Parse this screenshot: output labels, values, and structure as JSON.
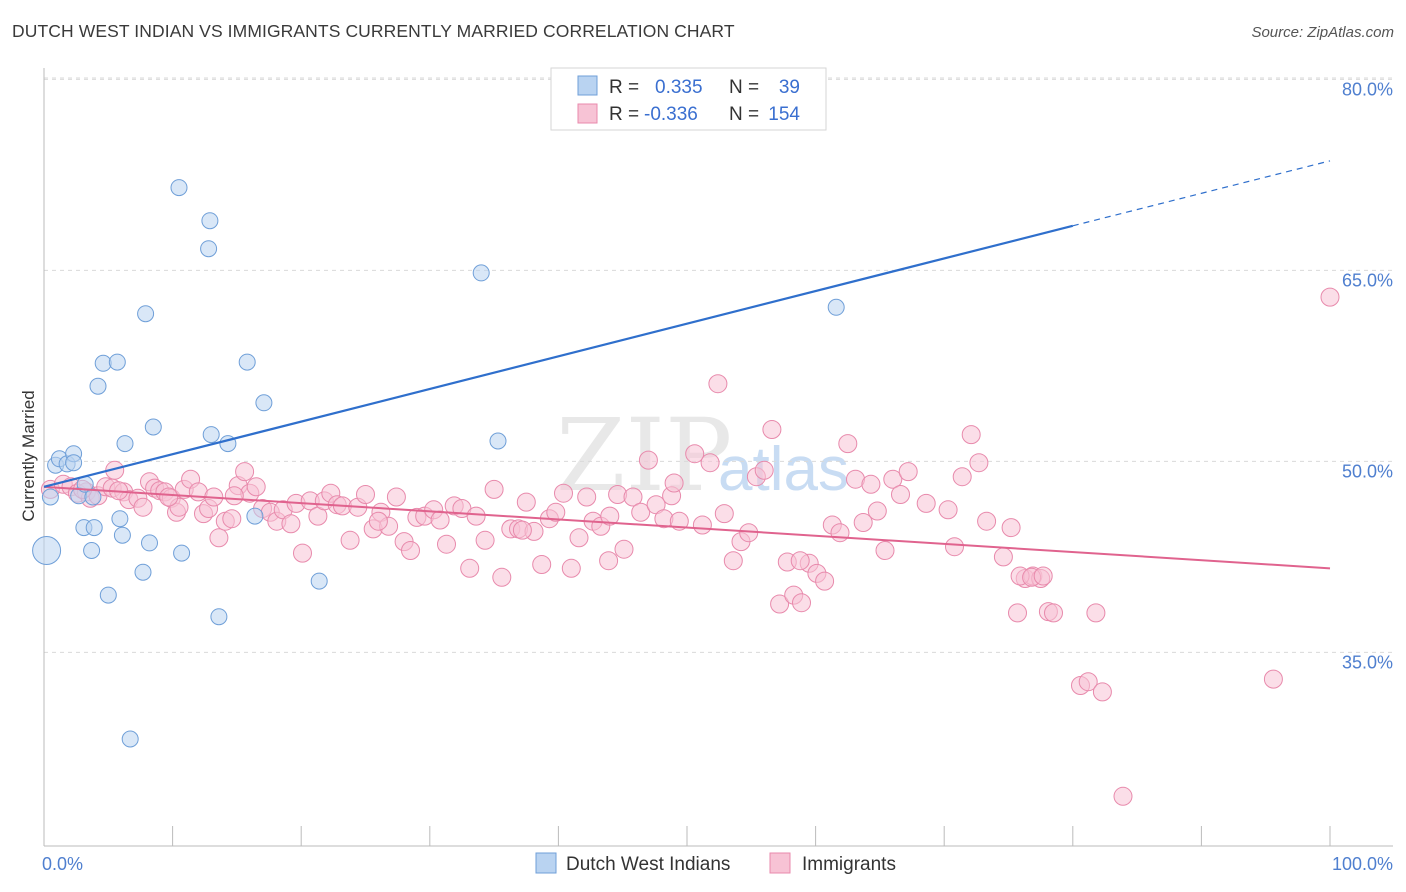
{
  "header": {
    "title": "DUTCH WEST INDIAN VS IMMIGRANTS CURRENTLY MARRIED CORRELATION CHART",
    "source": "Source: ZipAtlas.com"
  },
  "legend": {
    "rows": [
      {
        "r_label": "R =",
        "r_value": "0.335",
        "n_label": "N =",
        "n_value": "39"
      },
      {
        "r_label": "R =",
        "r_value": "-0.336",
        "n_label": "N =",
        "n_value": "154"
      }
    ]
  },
  "watermark": {
    "zip": "ZIP",
    "atlas": "atlas"
  },
  "colors": {
    "blue_fill": "#b9d3f1",
    "blue_stroke": "#6f9fd8",
    "blue_line": "#2f6fcc",
    "pink_fill": "#f7c3d5",
    "pink_stroke": "#e88aac",
    "pink_line": "#e0638e",
    "grid": "#d9d9d9",
    "axis_label": "#4f7fcf"
  },
  "chart_data": {
    "type": "scatter",
    "title": "DUTCH WEST INDIAN VS IMMIGRANTS CURRENTLY MARRIED CORRELATION CHART",
    "xlabel": "",
    "ylabel": "Currently Married",
    "xlim": [
      0,
      100
    ],
    "ylim": [
      20,
      82
    ],
    "x_tick_labels": [
      "0.0%",
      "100.0%"
    ],
    "y_ticks": [
      35,
      50,
      65,
      80
    ],
    "y_tick_labels": [
      "35.0%",
      "50.0%",
      "65.0%",
      "80.0%"
    ],
    "grid": true,
    "legend_position": "bottom",
    "series": [
      {
        "name": "Dutch West Indians",
        "R": 0.335,
        "N": 39,
        "trend": {
          "x0": 0,
          "y0": 48.0,
          "x1": 80,
          "y1": 68.5,
          "dashed_to_x": 100,
          "dashed_to_y": 73.6
        },
        "points": [
          [
            0.2,
            43.0,
            14
          ],
          [
            0.5,
            47.2,
            8
          ],
          [
            0.9,
            49.7,
            8
          ],
          [
            1.2,
            50.2,
            8
          ],
          [
            1.8,
            49.8,
            8
          ],
          [
            2.3,
            50.6,
            8
          ],
          [
            2.3,
            49.9,
            8
          ],
          [
            2.7,
            47.3,
            8
          ],
          [
            3.2,
            48.2,
            8
          ],
          [
            3.8,
            47.2,
            8
          ],
          [
            3.1,
            44.8,
            8
          ],
          [
            3.7,
            43.0,
            8
          ],
          [
            3.9,
            44.8,
            8
          ],
          [
            4.2,
            55.9,
            8
          ],
          [
            4.6,
            57.7,
            8
          ],
          [
            5.0,
            39.5,
            8
          ],
          [
            5.7,
            57.8,
            8
          ],
          [
            5.9,
            45.5,
            8
          ],
          [
            6.1,
            44.2,
            8
          ],
          [
            6.3,
            51.4,
            8
          ],
          [
            6.7,
            28.2,
            8
          ],
          [
            7.7,
            41.3,
            8
          ],
          [
            7.9,
            61.6,
            8
          ],
          [
            8.2,
            43.6,
            8
          ],
          [
            8.5,
            52.7,
            8
          ],
          [
            10.5,
            71.5,
            8
          ],
          [
            10.7,
            42.8,
            8
          ],
          [
            12.9,
            68.9,
            8
          ],
          [
            12.8,
            66.7,
            8
          ],
          [
            13.0,
            52.1,
            8
          ],
          [
            13.6,
            37.8,
            8
          ],
          [
            14.3,
            51.4,
            8
          ],
          [
            15.8,
            57.8,
            8
          ],
          [
            16.4,
            45.7,
            8
          ],
          [
            17.1,
            54.6,
            8
          ],
          [
            21.4,
            40.6,
            8
          ],
          [
            34.0,
            64.8,
            8
          ],
          [
            35.3,
            51.6,
            8
          ],
          [
            61.6,
            62.1,
            8
          ]
        ]
      },
      {
        "name": "Immigrants",
        "R": -0.336,
        "N": 154,
        "trend": {
          "x0": 0,
          "y0": 48.0,
          "x1": 100,
          "y1": 41.6
        },
        "points": [
          [
            0.5,
            47.8,
            9
          ],
          [
            1.5,
            48.2,
            9
          ],
          [
            2.1,
            48.0,
            9
          ],
          [
            2.6,
            47.5,
            9
          ],
          [
            3.3,
            47.6,
            9
          ],
          [
            3.6,
            47.1,
            9
          ],
          [
            4.2,
            47.3,
            9
          ],
          [
            4.8,
            48.0,
            9
          ],
          [
            5.3,
            47.9,
            9
          ],
          [
            5.5,
            49.3,
            9
          ],
          [
            6.2,
            47.6,
            9
          ],
          [
            6.6,
            47.0,
            9
          ],
          [
            7.3,
            47.1,
            9
          ],
          [
            7.7,
            46.4,
            9
          ],
          [
            8.2,
            48.4,
            9
          ],
          [
            8.6,
            47.9,
            9
          ],
          [
            9.0,
            47.7,
            9
          ],
          [
            9.4,
            47.6,
            9
          ],
          [
            9.9,
            47.1,
            9
          ],
          [
            10.3,
            46.0,
            9
          ],
          [
            10.5,
            46.4,
            9
          ],
          [
            10.9,
            47.8,
            9
          ],
          [
            11.4,
            48.6,
            9
          ],
          [
            12.0,
            47.6,
            9
          ],
          [
            12.4,
            45.9,
            9
          ],
          [
            12.8,
            46.3,
            9
          ],
          [
            13.2,
            47.2,
            9
          ],
          [
            13.6,
            44.0,
            9
          ],
          [
            14.1,
            45.3,
            9
          ],
          [
            14.6,
            45.5,
            9
          ],
          [
            15.1,
            48.1,
            9
          ],
          [
            15.6,
            49.2,
            9
          ],
          [
            16.0,
            47.5,
            9
          ],
          [
            16.5,
            48.0,
            9
          ],
          [
            17.0,
            46.3,
            9
          ],
          [
            17.6,
            46.0,
            9
          ],
          [
            18.1,
            45.3,
            9
          ],
          [
            18.6,
            46.2,
            9
          ],
          [
            19.2,
            45.1,
            9
          ],
          [
            19.6,
            46.7,
            9
          ],
          [
            20.1,
            42.8,
            9
          ],
          [
            20.7,
            46.9,
            9
          ],
          [
            21.3,
            45.7,
            9
          ],
          [
            21.8,
            46.9,
            9
          ],
          [
            22.3,
            47.5,
            9
          ],
          [
            22.8,
            46.6,
            9
          ],
          [
            23.2,
            46.5,
            9
          ],
          [
            23.8,
            43.8,
            9
          ],
          [
            24.4,
            46.4,
            9
          ],
          [
            25.0,
            47.4,
            9
          ],
          [
            25.6,
            44.7,
            9
          ],
          [
            26.2,
            46.0,
            9
          ],
          [
            26.8,
            44.9,
            9
          ],
          [
            27.4,
            47.2,
            9
          ],
          [
            28.0,
            43.7,
            9
          ],
          [
            28.5,
            43.0,
            9
          ],
          [
            29.0,
            45.6,
            9
          ],
          [
            29.6,
            45.7,
            9
          ],
          [
            30.3,
            46.2,
            9
          ],
          [
            30.8,
            45.4,
            9
          ],
          [
            31.3,
            43.5,
            9
          ],
          [
            31.9,
            46.5,
            9
          ],
          [
            32.5,
            46.3,
            9
          ],
          [
            33.1,
            41.6,
            9
          ],
          [
            33.6,
            45.7,
            9
          ],
          [
            34.3,
            43.8,
            9
          ],
          [
            35.0,
            47.8,
            9
          ],
          [
            35.6,
            40.9,
            9
          ],
          [
            36.3,
            44.7,
            9
          ],
          [
            36.9,
            44.7,
            9
          ],
          [
            37.5,
            46.8,
            9
          ],
          [
            38.1,
            44.5,
            9
          ],
          [
            38.7,
            41.9,
            9
          ],
          [
            39.3,
            45.5,
            9
          ],
          [
            39.8,
            46.0,
            9
          ],
          [
            40.4,
            47.5,
            9
          ],
          [
            41.0,
            41.6,
            9
          ],
          [
            41.6,
            44.0,
            9
          ],
          [
            42.2,
            47.2,
            9
          ],
          [
            42.7,
            45.3,
            9
          ],
          [
            43.3,
            44.9,
            9
          ],
          [
            43.9,
            42.2,
            9
          ],
          [
            44.6,
            47.4,
            9
          ],
          [
            45.1,
            43.1,
            9
          ],
          [
            45.8,
            47.2,
            9
          ],
          [
            46.4,
            46.0,
            9
          ],
          [
            47.0,
            50.1,
            9
          ],
          [
            47.6,
            46.6,
            9
          ],
          [
            48.2,
            45.5,
            9
          ],
          [
            48.8,
            47.3,
            9
          ],
          [
            49.4,
            45.3,
            9
          ],
          [
            50.6,
            50.6,
            9
          ],
          [
            51.2,
            45.0,
            9
          ],
          [
            51.8,
            49.9,
            9
          ],
          [
            52.4,
            56.1,
            9
          ],
          [
            52.9,
            45.9,
            9
          ],
          [
            53.6,
            42.2,
            9
          ],
          [
            54.2,
            43.7,
            9
          ],
          [
            54.8,
            44.4,
            9
          ],
          [
            55.4,
            48.8,
            9
          ],
          [
            56.0,
            49.3,
            9
          ],
          [
            56.6,
            52.5,
            9
          ],
          [
            57.2,
            38.8,
            9
          ],
          [
            57.8,
            42.1,
            9
          ],
          [
            58.3,
            39.5,
            9
          ],
          [
            58.9,
            38.9,
            9
          ],
          [
            59.5,
            42.0,
            9
          ],
          [
            60.1,
            41.2,
            9
          ],
          [
            60.7,
            40.6,
            9
          ],
          [
            61.3,
            45.0,
            9
          ],
          [
            61.9,
            44.4,
            9
          ],
          [
            62.5,
            51.4,
            9
          ],
          [
            63.1,
            48.6,
            9
          ],
          [
            63.7,
            45.2,
            9
          ],
          [
            64.3,
            48.2,
            9
          ],
          [
            64.8,
            46.1,
            9
          ],
          [
            65.4,
            43.0,
            9
          ],
          [
            66.0,
            48.6,
            9
          ],
          [
            66.6,
            47.4,
            9
          ],
          [
            67.2,
            49.2,
            9
          ],
          [
            70.3,
            46.2,
            9
          ],
          [
            70.8,
            43.3,
            9
          ],
          [
            71.4,
            48.8,
            9
          ],
          [
            72.1,
            52.1,
            9
          ],
          [
            72.7,
            49.9,
            9
          ],
          [
            73.3,
            45.3,
            9
          ],
          [
            74.6,
            42.5,
            9
          ],
          [
            75.2,
            44.8,
            9
          ],
          [
            75.7,
            38.1,
            9
          ],
          [
            76.3,
            40.8,
            9
          ],
          [
            76.9,
            41.0,
            9
          ],
          [
            77.5,
            40.8,
            9
          ],
          [
            78.1,
            38.2,
            9
          ],
          [
            75.9,
            41.0,
            9
          ],
          [
            76.8,
            40.9,
            9
          ],
          [
            77.7,
            41.0,
            9
          ],
          [
            78.5,
            38.1,
            9
          ],
          [
            80.6,
            32.4,
            9
          ],
          [
            81.2,
            32.7,
            9
          ],
          [
            81.8,
            38.1,
            9
          ],
          [
            82.3,
            31.9,
            9
          ],
          [
            83.9,
            23.7,
            9
          ],
          [
            95.6,
            32.9,
            9
          ],
          [
            100.0,
            62.9,
            9
          ],
          [
            5.8,
            47.7,
            9
          ],
          [
            9.7,
            47.2,
            9
          ],
          [
            14.8,
            47.3,
            9
          ],
          [
            26.0,
            45.3,
            9
          ],
          [
            37.2,
            44.6,
            9
          ],
          [
            49.0,
            48.3,
            9
          ],
          [
            58.8,
            42.2,
            9
          ],
          [
            68.6,
            46.7,
            9
          ],
          [
            3.0,
            47.8,
            9
          ],
          [
            44.0,
            45.7,
            9
          ]
        ]
      }
    ]
  },
  "bottom_legend": {
    "items": [
      "Dutch West Indians",
      "Immigrants"
    ]
  }
}
